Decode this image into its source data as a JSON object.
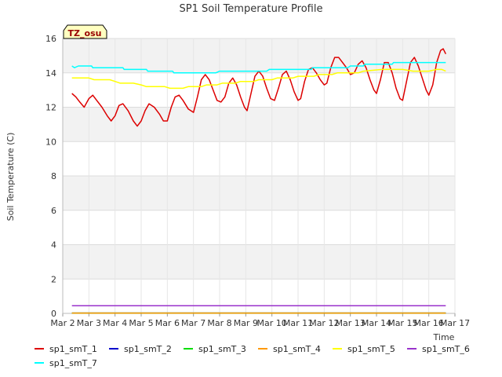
{
  "chart_data": {
    "type": "line",
    "title": "SP1 Soil Temperature Profile",
    "xlabel": "Time",
    "ylabel": "Soil Temperature (C)",
    "badge": "TZ_osu",
    "xlim": [
      0,
      15
    ],
    "ylim": [
      0,
      16
    ],
    "yticks": [
      0,
      2,
      4,
      6,
      8,
      10,
      12,
      14,
      16
    ],
    "xticks": [
      {
        "x": 0,
        "label": "Mar 2"
      },
      {
        "x": 1,
        "label": "Mar 3"
      },
      {
        "x": 2,
        "label": "Mar 4"
      },
      {
        "x": 3,
        "label": "Mar 5"
      },
      {
        "x": 4,
        "label": "Mar 6"
      },
      {
        "x": 5,
        "label": "Mar 7"
      },
      {
        "x": 6,
        "label": "Mar 8"
      },
      {
        "x": 7,
        "label": "Mar 9"
      },
      {
        "x": 8,
        "label": "Mar 10"
      },
      {
        "x": 9,
        "label": "Mar 11"
      },
      {
        "x": 10,
        "label": "Mar 12"
      },
      {
        "x": 11,
        "label": "Mar 13"
      },
      {
        "x": 12,
        "label": "Mar 14"
      },
      {
        "x": 13,
        "label": "Mar 15"
      },
      {
        "x": 14,
        "label": "Mar 16"
      },
      {
        "x": 15,
        "label": "Mar 17"
      }
    ],
    "grid": true,
    "legend_position": "bottom",
    "series": [
      {
        "name": "sp1_smT_1",
        "color": "#dd0000",
        "points": [
          [
            0.35,
            12.8
          ],
          [
            0.5,
            12.6
          ],
          [
            0.65,
            12.3
          ],
          [
            0.82,
            12.0
          ],
          [
            1.0,
            12.5
          ],
          [
            1.15,
            12.7
          ],
          [
            1.3,
            12.4
          ],
          [
            1.5,
            12.0
          ],
          [
            1.7,
            11.5
          ],
          [
            1.85,
            11.2
          ],
          [
            2.0,
            11.5
          ],
          [
            2.15,
            12.1
          ],
          [
            2.3,
            12.2
          ],
          [
            2.5,
            11.8
          ],
          [
            2.7,
            11.2
          ],
          [
            2.85,
            10.9
          ],
          [
            3.0,
            11.2
          ],
          [
            3.15,
            11.8
          ],
          [
            3.3,
            12.2
          ],
          [
            3.5,
            12.0
          ],
          [
            3.7,
            11.6
          ],
          [
            3.85,
            11.2
          ],
          [
            4.0,
            11.2
          ],
          [
            4.15,
            12.0
          ],
          [
            4.3,
            12.6
          ],
          [
            4.45,
            12.7
          ],
          [
            4.6,
            12.4
          ],
          [
            4.8,
            11.9
          ],
          [
            5.0,
            11.7
          ],
          [
            5.15,
            12.6
          ],
          [
            5.3,
            13.6
          ],
          [
            5.45,
            13.9
          ],
          [
            5.6,
            13.6
          ],
          [
            5.75,
            13.0
          ],
          [
            5.9,
            12.4
          ],
          [
            6.05,
            12.3
          ],
          [
            6.2,
            12.6
          ],
          [
            6.35,
            13.4
          ],
          [
            6.5,
            13.7
          ],
          [
            6.65,
            13.3
          ],
          [
            6.8,
            12.6
          ],
          [
            6.95,
            12.0
          ],
          [
            7.05,
            11.8
          ],
          [
            7.2,
            12.8
          ],
          [
            7.35,
            13.8
          ],
          [
            7.5,
            14.1
          ],
          [
            7.65,
            13.8
          ],
          [
            7.8,
            13.1
          ],
          [
            7.95,
            12.5
          ],
          [
            8.1,
            12.4
          ],
          [
            8.25,
            13.1
          ],
          [
            8.4,
            13.9
          ],
          [
            8.55,
            14.1
          ],
          [
            8.7,
            13.6
          ],
          [
            8.85,
            12.9
          ],
          [
            9.0,
            12.4
          ],
          [
            9.1,
            12.5
          ],
          [
            9.25,
            13.5
          ],
          [
            9.4,
            14.2
          ],
          [
            9.55,
            14.3
          ],
          [
            9.7,
            14.0
          ],
          [
            9.85,
            13.6
          ],
          [
            10.0,
            13.3
          ],
          [
            10.1,
            13.4
          ],
          [
            10.25,
            14.3
          ],
          [
            10.4,
            14.9
          ],
          [
            10.55,
            14.9
          ],
          [
            10.7,
            14.6
          ],
          [
            10.85,
            14.3
          ],
          [
            11.0,
            13.9
          ],
          [
            11.15,
            14.0
          ],
          [
            11.3,
            14.5
          ],
          [
            11.45,
            14.7
          ],
          [
            11.6,
            14.3
          ],
          [
            11.75,
            13.6
          ],
          [
            11.9,
            13.0
          ],
          [
            12.0,
            12.8
          ],
          [
            12.15,
            13.6
          ],
          [
            12.3,
            14.6
          ],
          [
            12.45,
            14.6
          ],
          [
            12.6,
            14.0
          ],
          [
            12.75,
            13.1
          ],
          [
            12.9,
            12.5
          ],
          [
            13.0,
            12.4
          ],
          [
            13.15,
            13.5
          ],
          [
            13.3,
            14.6
          ],
          [
            13.45,
            14.9
          ],
          [
            13.6,
            14.4
          ],
          [
            13.75,
            13.7
          ],
          [
            13.9,
            13.0
          ],
          [
            14.0,
            12.7
          ],
          [
            14.15,
            13.3
          ],
          [
            14.3,
            14.6
          ],
          [
            14.45,
            15.3
          ],
          [
            14.55,
            15.4
          ],
          [
            14.65,
            15.1
          ]
        ]
      },
      {
        "name": "sp1_smT_2",
        "color": "#0000cc",
        "points": [
          [
            0.35,
            0.02
          ],
          [
            14.65,
            0.02
          ]
        ]
      },
      {
        "name": "sp1_smT_3",
        "color": "#00dd00",
        "points": [
          [
            0.35,
            0.02
          ],
          [
            14.65,
            0.02
          ]
        ]
      },
      {
        "name": "sp1_smT_4",
        "color": "#ff9900",
        "points": [
          [
            0.35,
            0.02
          ],
          [
            14.65,
            0.02
          ]
        ]
      },
      {
        "name": "sp1_smT_5",
        "color": "#ffff00",
        "points": [
          [
            0.35,
            13.7
          ],
          [
            1.0,
            13.7
          ],
          [
            1.2,
            13.6
          ],
          [
            1.8,
            13.6
          ],
          [
            2.0,
            13.5
          ],
          [
            2.2,
            13.4
          ],
          [
            2.7,
            13.4
          ],
          [
            3.0,
            13.3
          ],
          [
            3.2,
            13.2
          ],
          [
            3.9,
            13.2
          ],
          [
            4.1,
            13.1
          ],
          [
            4.6,
            13.1
          ],
          [
            4.8,
            13.2
          ],
          [
            5.3,
            13.2
          ],
          [
            5.5,
            13.3
          ],
          [
            5.9,
            13.3
          ],
          [
            6.1,
            13.4
          ],
          [
            6.6,
            13.4
          ],
          [
            6.8,
            13.5
          ],
          [
            7.3,
            13.5
          ],
          [
            7.5,
            13.6
          ],
          [
            8.0,
            13.6
          ],
          [
            8.2,
            13.7
          ],
          [
            8.8,
            13.7
          ],
          [
            9.0,
            13.8
          ],
          [
            9.6,
            13.8
          ],
          [
            9.8,
            13.9
          ],
          [
            10.3,
            13.9
          ],
          [
            10.5,
            14.0
          ],
          [
            11.3,
            14.0
          ],
          [
            11.5,
            14.1
          ],
          [
            12.2,
            14.2
          ],
          [
            13.0,
            14.2
          ],
          [
            13.4,
            14.1
          ],
          [
            14.0,
            14.1
          ],
          [
            14.3,
            14.2
          ],
          [
            14.5,
            14.2
          ],
          [
            14.65,
            14.1
          ]
        ]
      },
      {
        "name": "sp1_smT_6",
        "color": "#9933cc",
        "points": [
          [
            0.35,
            0.45
          ],
          [
            14.65,
            0.45
          ]
        ]
      },
      {
        "name": "sp1_smT_7",
        "color": "#00ffff",
        "points": [
          [
            0.35,
            14.4
          ],
          [
            0.45,
            14.3
          ],
          [
            0.6,
            14.4
          ],
          [
            1.1,
            14.4
          ],
          [
            1.15,
            14.3
          ],
          [
            2.3,
            14.3
          ],
          [
            2.35,
            14.2
          ],
          [
            3.2,
            14.2
          ],
          [
            3.25,
            14.1
          ],
          [
            4.2,
            14.1
          ],
          [
            4.25,
            14.0
          ],
          [
            5.8,
            14.0
          ],
          [
            5.85,
            14.0
          ],
          [
            6.0,
            14.1
          ],
          [
            7.8,
            14.1
          ],
          [
            7.9,
            14.2
          ],
          [
            9.5,
            14.2
          ],
          [
            9.55,
            14.3
          ],
          [
            10.9,
            14.3
          ],
          [
            11.0,
            14.4
          ],
          [
            11.5,
            14.4
          ],
          [
            11.55,
            14.5
          ],
          [
            12.6,
            14.5
          ],
          [
            12.65,
            14.6
          ],
          [
            14.65,
            14.6
          ]
        ]
      }
    ]
  }
}
